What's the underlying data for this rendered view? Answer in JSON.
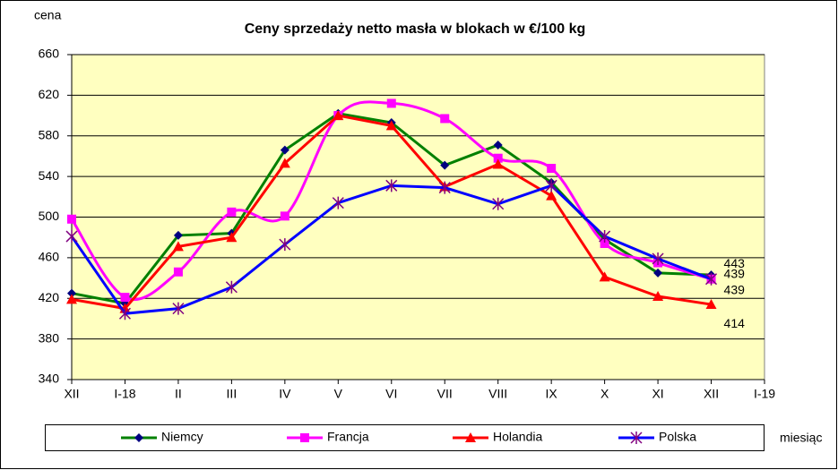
{
  "chart_data": {
    "type": "line",
    "title": "Ceny sprzedaży netto masła w blokach w €/100 kg",
    "y_label": "cena",
    "x_label": "miesiąc",
    "categories": [
      "XII",
      "I-18",
      "II",
      "III",
      "IV",
      "V",
      "VI",
      "VII",
      "VIII",
      "IX",
      "X",
      "XI",
      "XII",
      "I-19"
    ],
    "series": [
      {
        "name": "Niemcy",
        "color": "#008000",
        "marker": "diamond",
        "marker_color": "#000080",
        "smooth": false,
        "values": [
          425,
          415,
          482,
          484,
          566,
          602,
          593,
          551,
          571,
          534,
          478,
          445,
          443,
          null
        ]
      },
      {
        "name": "Francja",
        "color": "#ff00ff",
        "marker": "square",
        "marker_color": "#ff00ff",
        "smooth": true,
        "values": [
          498,
          421,
          446,
          505,
          501,
          600,
          612,
          597,
          558,
          548,
          474,
          455,
          439,
          null
        ]
      },
      {
        "name": "Holandia",
        "color": "#ff0000",
        "marker": "triangle",
        "marker_color": "#ff0000",
        "smooth": false,
        "values": [
          419,
          410,
          471,
          480,
          553,
          600,
          590,
          530,
          552,
          521,
          441,
          422,
          414,
          null
        ]
      },
      {
        "name": "Polska",
        "color": "#0000ff",
        "marker": "star",
        "marker_color": "#800080",
        "smooth": false,
        "values": [
          481,
          405,
          410,
          431,
          473,
          514,
          531,
          529,
          513,
          531,
          481,
          459,
          439,
          null
        ]
      }
    ],
    "ylim": [
      340,
      660
    ],
    "yticks": [
      340,
      380,
      420,
      460,
      500,
      540,
      580,
      620,
      660
    ],
    "grid": true,
    "legend": "bottom",
    "plot_background": "#ffffc0"
  }
}
